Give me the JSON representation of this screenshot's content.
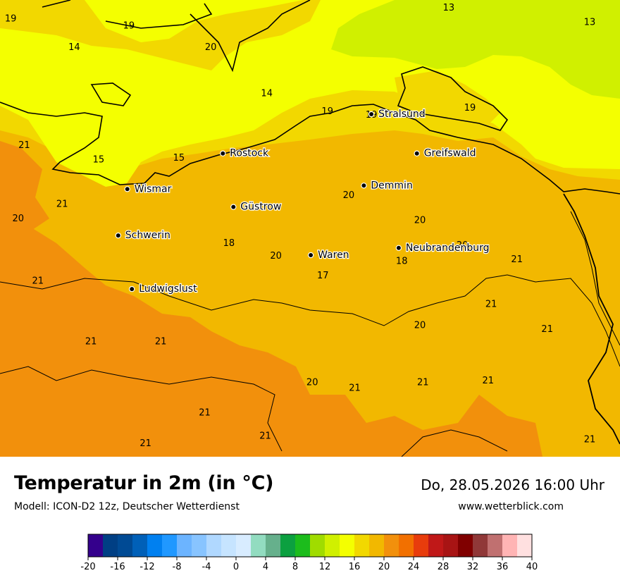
{
  "header": {
    "title": "Temperatur in 2m (in °C)",
    "subtitle": "Modell: ICON-D2 12z, Deutscher Wetterdienst",
    "datetime": "Do, 28.05.2026 16:00 Uhr",
    "website": "www.wetterblick.com"
  },
  "cities": [
    {
      "name": "Stralsund",
      "lon": 13.08,
      "lat": 54.31
    },
    {
      "name": "Rostock",
      "lon": 12.1,
      "lat": 54.09
    },
    {
      "name": "Greifswald",
      "lon": 13.38,
      "lat": 54.09
    },
    {
      "name": "Wismar",
      "lon": 11.47,
      "lat": 53.89
    },
    {
      "name": "Demmin",
      "lon": 13.03,
      "lat": 53.91
    },
    {
      "name": "Güstrow",
      "lon": 12.17,
      "lat": 53.79
    },
    {
      "name": "Schwerin",
      "lon": 11.41,
      "lat": 53.63
    },
    {
      "name": "Neubrandenburg",
      "lon": 13.26,
      "lat": 53.56
    },
    {
      "name": "Waren",
      "lon": 12.68,
      "lat": 53.52
    },
    {
      "name": "Ludwigslust",
      "lon": 11.5,
      "lat": 53.33
    }
  ],
  "temperature_labels": [
    {
      "text": "19",
      "lon": 10.7,
      "lat": 54.85
    },
    {
      "text": "19",
      "lon": 11.48,
      "lat": 54.81
    },
    {
      "text": "14",
      "lon": 11.12,
      "lat": 54.69
    },
    {
      "text": "20",
      "lon": 12.02,
      "lat": 54.69
    },
    {
      "text": "13",
      "lon": 13.59,
      "lat": 54.91
    },
    {
      "text": "13",
      "lon": 14.52,
      "lat": 54.83
    },
    {
      "text": "14",
      "lon": 12.39,
      "lat": 54.43
    },
    {
      "text": "19",
      "lon": 12.79,
      "lat": 54.33
    },
    {
      "text": "19",
      "lon": 13.08,
      "lat": 54.31
    },
    {
      "text": "19",
      "lon": 13.73,
      "lat": 54.35
    },
    {
      "text": "21",
      "lon": 10.79,
      "lat": 54.14
    },
    {
      "text": "15",
      "lon": 11.28,
      "lat": 54.06
    },
    {
      "text": "15",
      "lon": 11.81,
      "lat": 54.07
    },
    {
      "text": "21",
      "lon": 11.04,
      "lat": 53.81
    },
    {
      "text": "20",
      "lon": 10.75,
      "lat": 53.73
    },
    {
      "text": "20",
      "lon": 12.93,
      "lat": 53.86
    },
    {
      "text": "20",
      "lon": 13.4,
      "lat": 53.72
    },
    {
      "text": "18",
      "lon": 12.14,
      "lat": 53.59
    },
    {
      "text": "20",
      "lon": 12.45,
      "lat": 53.52
    },
    {
      "text": "20",
      "lon": 13.68,
      "lat": 53.58
    },
    {
      "text": "18",
      "lon": 13.28,
      "lat": 53.49
    },
    {
      "text": "21",
      "lon": 14.04,
      "lat": 53.5
    },
    {
      "text": "17",
      "lon": 12.76,
      "lat": 53.41
    },
    {
      "text": "21",
      "lon": 10.88,
      "lat": 53.38
    },
    {
      "text": "21",
      "lon": 13.87,
      "lat": 53.25
    },
    {
      "text": "20",
      "lon": 13.4,
      "lat": 53.13
    },
    {
      "text": "21",
      "lon": 14.24,
      "lat": 53.11
    },
    {
      "text": "21",
      "lon": 11.23,
      "lat": 53.04
    },
    {
      "text": "21",
      "lon": 11.69,
      "lat": 53.04
    },
    {
      "text": "20",
      "lon": 12.69,
      "lat": 52.81
    },
    {
      "text": "21",
      "lon": 12.97,
      "lat": 52.78
    },
    {
      "text": "21",
      "lon": 13.42,
      "lat": 52.81
    },
    {
      "text": "21",
      "lon": 13.85,
      "lat": 52.82
    },
    {
      "text": "21",
      "lon": 11.98,
      "lat": 52.64
    },
    {
      "text": "21",
      "lon": 12.38,
      "lat": 52.51
    },
    {
      "text": "21",
      "lon": 11.59,
      "lat": 52.47
    },
    {
      "text": "21",
      "lon": 14.52,
      "lat": 52.49
    }
  ],
  "legend": {
    "ticks": [
      "-20",
      "-16",
      "-12",
      "-8",
      "-4",
      "0",
      "4",
      "8",
      "12",
      "16",
      "20",
      "24",
      "28",
      "32",
      "36",
      "40"
    ],
    "colors": [
      "#34008c",
      "#003f84",
      "#004a94",
      "#0060b8",
      "#0080f0",
      "#2098ff",
      "#6cb4ff",
      "#88c4ff",
      "#b0d8ff",
      "#c6e4ff",
      "#d8ecff",
      "#92dcc0",
      "#66b08c",
      "#0ca040",
      "#1cbc1c",
      "#a0dc00",
      "#d0f000",
      "#f4ff00",
      "#f2d800",
      "#f2b800",
      "#f2900c",
      "#f27000",
      "#e83c0c",
      "#c01818",
      "#a81414",
      "#800000",
      "#903838",
      "#c07070",
      "#ffb4b4",
      "#ffe0e0"
    ]
  }
}
